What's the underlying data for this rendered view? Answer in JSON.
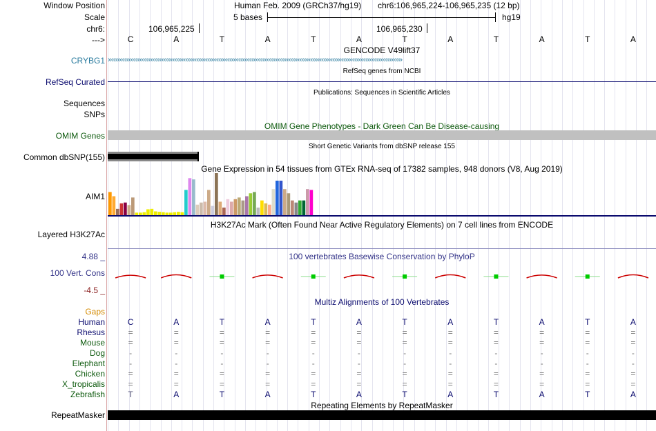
{
  "header": {
    "window_position_label": "Window Position",
    "scale_label": "Scale",
    "chrom_label": "chr6:",
    "strand_label": "--->",
    "assembly": "Human Feb. 2009 (GRCh37/hg19)",
    "position": "chr6:106,965,224-106,965,235 (12 bp)",
    "scale_text": "5 bases",
    "db": "hg19",
    "coord1": "106,965,225",
    "coord2": "106,965,230"
  },
  "sequence": [
    "C",
    "A",
    "T",
    "A",
    "T",
    "A",
    "T",
    "A",
    "T",
    "A",
    "T",
    "A"
  ],
  "tracks": {
    "gencode": {
      "title": "GENCODE V49lift37",
      "gene": "CRYBG1",
      "color": "#2a7b9e"
    },
    "refseq": {
      "title": "RefSeq genes from NCBI",
      "label": "RefSeq Curated",
      "color": "#0a0a6e"
    },
    "publications": {
      "title": "Publications: Sequences in Scientific Articles",
      "label1": "Sequences",
      "label2": "SNPs"
    },
    "omim": {
      "title": "OMIM Gene Phenotypes - Dark Green Can Be Disease-causing",
      "label": "OMIM Genes",
      "color": "#0e5a0e"
    },
    "dbsnp": {
      "title": "Short Genetic Variants from dbSNP release 155",
      "label": "Common dbSNP(155)"
    },
    "gtex": {
      "title": "Gene Expression in 54 tissues from GTEx RNA-seq of 17382 samples, 948 donors (V8, Aug 2019)",
      "gene": "AIM1",
      "bars": [
        {
          "v": 0.55,
          "c": "#ff9900"
        },
        {
          "v": 0.45,
          "c": "#ffaa33"
        },
        {
          "v": 0.15,
          "c": "#9a6e5a"
        },
        {
          "v": 0.28,
          "c": "#cc3333"
        },
        {
          "v": 0.3,
          "c": "#880044"
        },
        {
          "v": 0.24,
          "c": "#ccaa88"
        },
        {
          "v": 0.42,
          "c": "#bb9977"
        },
        {
          "v": 0.06,
          "c": "#eeee00"
        },
        {
          "v": 0.06,
          "c": "#eeee00"
        },
        {
          "v": 0.07,
          "c": "#eeee00"
        },
        {
          "v": 0.14,
          "c": "#eeee00"
        },
        {
          "v": 0.15,
          "c": "#eeee00"
        },
        {
          "v": 0.09,
          "c": "#eeee00"
        },
        {
          "v": 0.08,
          "c": "#eeee00"
        },
        {
          "v": 0.07,
          "c": "#eeee00"
        },
        {
          "v": 0.06,
          "c": "#eeee00"
        },
        {
          "v": 0.06,
          "c": "#eeee00"
        },
        {
          "v": 0.07,
          "c": "#eeee00"
        },
        {
          "v": 0.08,
          "c": "#eeee00"
        },
        {
          "v": 0.07,
          "c": "#eeee00"
        },
        {
          "v": 0.6,
          "c": "#22cccc"
        },
        {
          "v": 0.88,
          "c": "#dd88ee"
        },
        {
          "v": 0.85,
          "c": "#99bbcc"
        },
        {
          "v": 0.25,
          "c": "#ddccbb"
        },
        {
          "v": 0.3,
          "c": "#ccbbaa"
        },
        {
          "v": 0.32,
          "c": "#ddbbaa"
        },
        {
          "v": 0.6,
          "c": "#ccaa88"
        },
        {
          "v": 0.22,
          "c": "#ccccdd"
        },
        {
          "v": 1.0,
          "c": "#8b7355"
        },
        {
          "v": 0.32,
          "c": "#ddaa77"
        },
        {
          "v": 0.18,
          "c": "#aa6655"
        },
        {
          "v": 0.38,
          "c": "#eeccdd"
        },
        {
          "v": 0.32,
          "c": "#ddaaaa"
        },
        {
          "v": 0.38,
          "c": "#cc9966"
        },
        {
          "v": 0.42,
          "c": "#bbaa77"
        },
        {
          "v": 0.35,
          "c": "#aa9988"
        },
        {
          "v": 0.45,
          "c": "#aa77aa"
        },
        {
          "v": 0.52,
          "c": "#99cc33"
        },
        {
          "v": 0.55,
          "c": "#77aa55"
        },
        {
          "v": 0.18,
          "c": "#bbbbbb"
        },
        {
          "v": 0.35,
          "c": "#ffdd00"
        },
        {
          "v": 0.28,
          "c": "#ddbb55"
        },
        {
          "v": 0.25,
          "c": "#ffaa88"
        },
        {
          "v": 0.62,
          "c": "#ddddcc"
        },
        {
          "v": 0.82,
          "c": "#2266dd"
        },
        {
          "v": 0.82,
          "c": "#3355cc"
        },
        {
          "v": 0.62,
          "c": "#ccaa88"
        },
        {
          "v": 0.52,
          "c": "#aa9977"
        },
        {
          "v": 0.35,
          "c": "#bb8877"
        },
        {
          "v": 0.3,
          "c": "#888888"
        },
        {
          "v": 0.35,
          "c": "#33aa33"
        },
        {
          "v": 0.35,
          "c": "#006633"
        },
        {
          "v": 0.62,
          "c": "#cc99aa"
        },
        {
          "v": 0.6,
          "c": "#ff00cc"
        }
      ]
    },
    "h3k27ac": {
      "title": "H3K27Ac Mark (Often Found Near Active Regulatory Elements) on 7 cell lines from ENCODE",
      "label": "Layered H3K27Ac"
    },
    "conservation": {
      "title": "100 vertebrates Basewise Conservation by PhyloP",
      "label": "100 Vert. Cons",
      "max": "4.88 _",
      "min": "-4.5 _",
      "scores": [
        -1.2,
        -1.4,
        0.6,
        -1.3,
        0.6,
        -1.3,
        0.6,
        -1.4,
        0.6,
        -1.3,
        0.6,
        -1.4
      ]
    },
    "multiz": {
      "title": "Multiz Alignments of 100 Vertebrates",
      "gaps_label": "Gaps",
      "species": [
        {
          "name": "Human",
          "color": "#0a0a6e",
          "row": [
            "C",
            "A",
            "T",
            "A",
            "T",
            "A",
            "T",
            "A",
            "T",
            "A",
            "T",
            "A"
          ]
        },
        {
          "name": "Rhesus",
          "color": "#0a0a6e",
          "row": [
            "=",
            "=",
            "=",
            "=",
            "=",
            "=",
            "=",
            "=",
            "=",
            "=",
            "=",
            "="
          ]
        },
        {
          "name": "Mouse",
          "color": "#0e5a0e",
          "row": [
            "=",
            "=",
            "=",
            "=",
            "=",
            "=",
            "=",
            "=",
            "=",
            "=",
            "=",
            "="
          ]
        },
        {
          "name": "Dog",
          "color": "#0e5a0e",
          "row": [
            "-",
            "-",
            "-",
            "-",
            "-",
            "-",
            "-",
            "-",
            "-",
            "-",
            "-",
            "-"
          ]
        },
        {
          "name": "Elephant",
          "color": "#0e5a0e",
          "row": [
            "-",
            "-",
            "-",
            "-",
            "-",
            "-",
            "-",
            "-",
            "-",
            "-",
            "-",
            "-"
          ]
        },
        {
          "name": "Chicken",
          "color": "#0e5a0e",
          "row": [
            "=",
            "=",
            "=",
            "=",
            "=",
            "=",
            "=",
            "=",
            "=",
            "=",
            "=",
            "="
          ]
        },
        {
          "name": "X_tropicalis",
          "color": "#0e5a0e",
          "row": [
            "=",
            "=",
            "=",
            "=",
            "=",
            "=",
            "=",
            "=",
            "=",
            "=",
            "=",
            "="
          ]
        },
        {
          "name": "Zebrafish",
          "color": "#0e5a0e",
          "row": [
            "T",
            "A",
            "T",
            "A",
            "T",
            "A",
            "T",
            "A",
            "T",
            "A",
            "T",
            "A"
          ]
        }
      ]
    },
    "repeatmasker": {
      "title": "Repeating Elements by RepeatMasker",
      "label": "RepeatMasker"
    }
  }
}
